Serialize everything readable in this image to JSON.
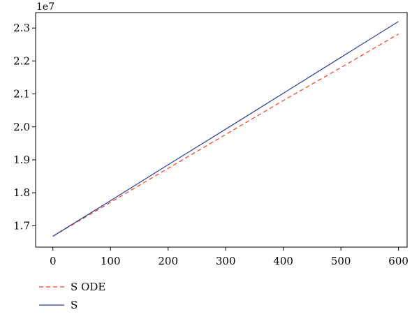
{
  "chart_data": {
    "type": "line",
    "y_offset_label": "1e7",
    "xlim": [
      -30,
      615
    ],
    "ylim": [
      1.635,
      2.347
    ],
    "x_ticks": [
      0,
      100,
      200,
      300,
      400,
      500,
      600
    ],
    "y_ticks": [
      1.7,
      1.8,
      1.9,
      2.0,
      2.1,
      2.2,
      2.3
    ],
    "x_tick_labels": [
      "0",
      "100",
      "200",
      "300",
      "400",
      "500",
      "600"
    ],
    "y_tick_labels": [
      "1.7",
      "1.8",
      "1.9",
      "2.0",
      "2.1",
      "2.2",
      "2.3"
    ],
    "legend_position": "below-left",
    "series": [
      {
        "name": "S ODE",
        "style": "dashed",
        "color": "#ff3b1f",
        "x": [
          0,
          100,
          200,
          300,
          400,
          500,
          600
        ],
        "y": [
          1.668,
          1.771,
          1.874,
          1.977,
          2.08,
          2.18,
          2.282
        ]
      },
      {
        "name": "S",
        "style": "solid",
        "color": "#2b3fa0",
        "x": [
          0,
          100,
          200,
          300,
          400,
          500,
          600
        ],
        "y": [
          1.668,
          1.776,
          1.885,
          1.993,
          2.102,
          2.211,
          2.32
        ]
      }
    ]
  }
}
